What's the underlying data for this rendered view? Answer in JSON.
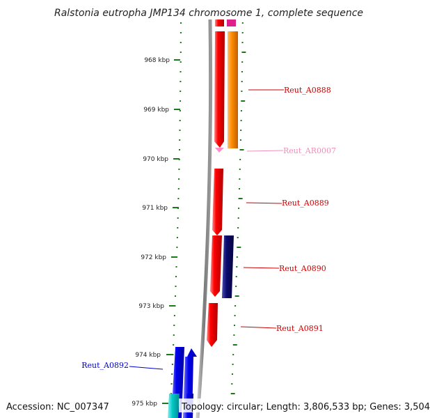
{
  "title": "Ralstonia eutropha JMP134 chromosome 1, complete sequence",
  "accession": "Accession: NC_007347",
  "stats": "Topology: circular; Length: 3,806,533 bp; Genes: 3,504",
  "ruler": {
    "ticks": [
      "968 kbp",
      "969 kbp",
      "970 kbp",
      "971 kbp",
      "972 kbp",
      "973 kbp",
      "974 kbp",
      "975 kbp"
    ]
  },
  "genes": [
    {
      "id": "gene-reut-a0888",
      "label": "Reut_A0888",
      "color": "#cc0000"
    },
    {
      "id": "gene-reut-ar0007",
      "label": "Reut_AR0007",
      "color": "#f090b8"
    },
    {
      "id": "gene-reut-a0889",
      "label": "Reut_A0889",
      "color": "#cc0000"
    },
    {
      "id": "gene-reut-a0890",
      "label": "Reut_A0890",
      "color": "#cc0000"
    },
    {
      "id": "gene-reut-a0891",
      "label": "Reut_A0891",
      "color": "#cc0000"
    },
    {
      "id": "gene-reut-a0892",
      "label": "Reut_A0892",
      "color": "#0000cc"
    }
  ],
  "colors": {
    "forward_red": "#ff0000",
    "reverse_orange": "#ff8c00",
    "navy": "#0a0a6e",
    "blue": "#0000ee",
    "cyan": "#00c8c8",
    "magenta": "#e0208a",
    "rna_pink": "#ff8fc8",
    "backbone": "#888888",
    "tick_green": "#1a7a1a"
  }
}
